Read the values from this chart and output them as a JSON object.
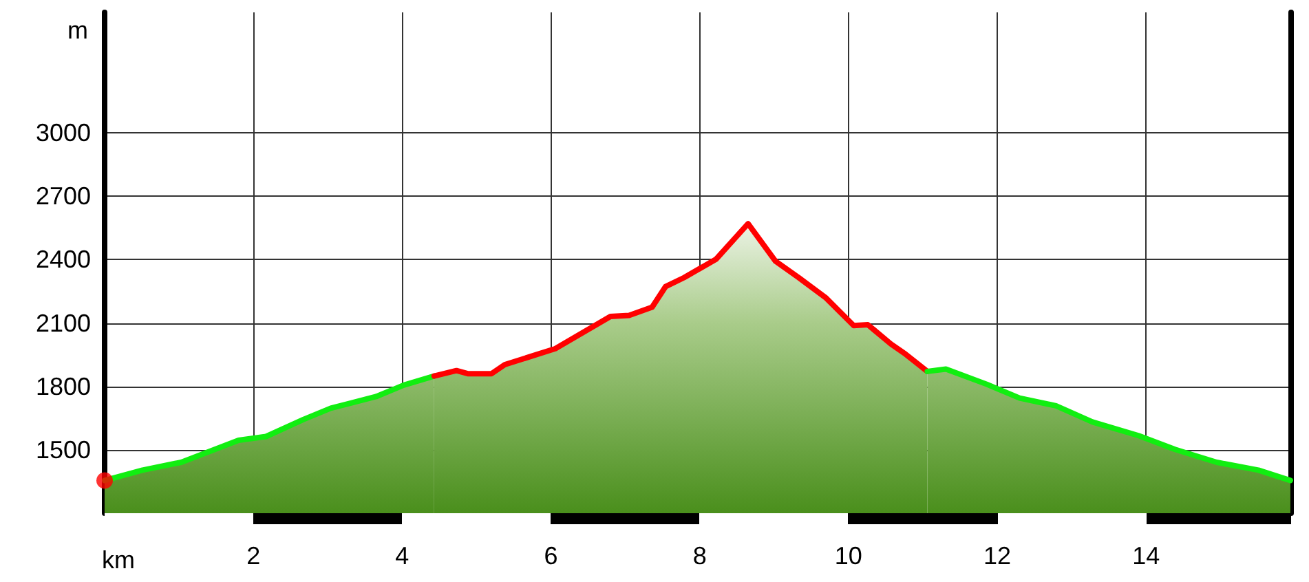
{
  "chart_data": {
    "type": "area",
    "xlabel": "km",
    "ylabel": "m",
    "xlim": [
      0,
      15.95
    ],
    "xticks": [
      2,
      4,
      6,
      8,
      10,
      12,
      14
    ],
    "ylim": [
      1200,
      3570
    ],
    "yticks": [
      1500,
      1800,
      2100,
      2400,
      2700,
      3000
    ],
    "grid": true,
    "marker": "none",
    "series": [
      {
        "color": "#11ee11",
        "x": [
          0,
          0.51,
          1.03,
          1.8,
          2.17,
          2.67,
          3.04,
          3.65,
          4.02,
          4.43
        ],
        "values": [
          1355,
          1404,
          1441,
          1545,
          1563,
          1643,
          1697,
          1752,
          1806,
          1849
        ]
      },
      {
        "color": "#ff0000",
        "x": [
          4.43,
          4.73,
          4.89,
          5.2,
          5.38,
          6.06,
          6.8,
          7.05,
          7.36,
          7.54,
          7.79,
          8.22,
          8.65,
          9.02,
          9.33,
          9.7,
          10.07,
          10.26,
          10.57,
          10.75,
          11.06
        ],
        "values": [
          1849,
          1875,
          1860,
          1860,
          1903,
          1979,
          2131,
          2136,
          2175,
          2272,
          2315,
          2402,
          2570,
          2392,
          2315,
          2218,
          2088,
          2092,
          2001,
          1957,
          1871
        ]
      },
      {
        "color": "#11ee11",
        "x": [
          11.06,
          11.31,
          11.86,
          12.3,
          12.79,
          13.28,
          13.9,
          14.39,
          14.95,
          15.51,
          15.94
        ],
        "values": [
          1871,
          1882,
          1810,
          1745,
          1708,
          1632,
          1567,
          1502,
          1441,
          1404,
          1355
        ]
      },
      {
        "type": "scatter",
        "color": "#ff0000",
        "marker": "circle",
        "x": [
          0
        ],
        "values": [
          1355
        ]
      }
    ]
  }
}
